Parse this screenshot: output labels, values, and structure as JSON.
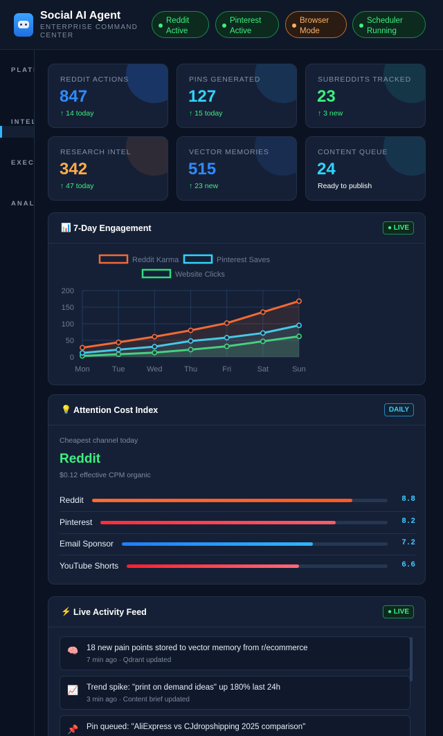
{
  "header": {
    "title": "Social AI Agent",
    "subtitle": "ENTERPRISE COMMAND CENTER",
    "pills": [
      {
        "line1": "Reddit",
        "line2": "Active",
        "status": "green"
      },
      {
        "line1": "Pinterest",
        "line2": "Active",
        "status": "green"
      },
      {
        "line1": "Browser",
        "line2": "Mode",
        "status": "orange"
      },
      {
        "line1": "Scheduler",
        "line2": "Running",
        "status": "green"
      }
    ]
  },
  "sidebar": {
    "sections": [
      "PLATFORMS",
      "INTELLIGENCE",
      "EXECUTION",
      "ANALYTICS"
    ]
  },
  "stats": [
    {
      "label": "REDDIT ACTIONS",
      "value": "847",
      "sub": "↑ 14 today",
      "color": "#2f8bff",
      "sub_color": "#3df07e",
      "glow": "#1e4fa0"
    },
    {
      "label": "PINS GENERATED",
      "value": "127",
      "sub": "↑ 15 today",
      "color": "#2fd5ff",
      "sub_color": "#3df07e",
      "glow": "#1b4a78"
    },
    {
      "label": "SUBREDDITS TRACKED",
      "value": "23",
      "sub": "↑ 3 new",
      "color": "#3df07e",
      "sub_color": "#3df07e",
      "glow": "#15515a"
    },
    {
      "label": "RESEARCH INTEL",
      "value": "342",
      "sub": "↑ 47 today",
      "color": "#ffad4a",
      "sub_color": "#3df07e",
      "glow": "#4d3a3a"
    },
    {
      "label": "VECTOR MEMORIES",
      "value": "515",
      "sub": "↑ 23 new",
      "color": "#2f8bff",
      "sub_color": "#3df07e",
      "glow": "#1e3f70"
    },
    {
      "label": "CONTENT QUEUE",
      "value": "24",
      "sub": "Ready to publish",
      "color": "#2fd5ff",
      "sub_color": "#ffffff",
      "glow": "#18506a"
    }
  ],
  "engagement": {
    "icon": "📊",
    "title": "7-Day Engagement",
    "badge": "● LIVE"
  },
  "chart_data": {
    "type": "line",
    "categories": [
      "Mon",
      "Tue",
      "Wed",
      "Thu",
      "Fri",
      "Sat",
      "Sun"
    ],
    "ylim": [
      0,
      200
    ],
    "yticks": [
      0,
      50,
      100,
      150,
      200
    ],
    "legend_position": "top",
    "grid": true,
    "series": [
      {
        "name": "Reddit Karma",
        "values": [
          28,
          44,
          61,
          80,
          102,
          135,
          168
        ],
        "color": "#f26a35"
      },
      {
        "name": "Pinterest Saves",
        "values": [
          12,
          22,
          31,
          48,
          58,
          72,
          95
        ],
        "color": "#2fd5ff"
      },
      {
        "name": "Website Clicks",
        "values": [
          3,
          8,
          13,
          22,
          32,
          47,
          62
        ],
        "color": "#2ee07a"
      }
    ]
  },
  "attention": {
    "icon": "💡",
    "title": "Attention Cost Index",
    "badge": "DAILY",
    "cheapest_label": "Cheapest channel today",
    "cheapest_channel": "Reddit",
    "cheapest_detail": "$0.12 effective CPM organic",
    "channels": [
      {
        "name": "Reddit",
        "score": "8.8",
        "fraction": 0.88,
        "color": "#ff6a2e",
        "color2": "#ff5a1f"
      },
      {
        "name": "Pinterest",
        "score": "8.2",
        "fraction": 0.82,
        "color": "#ff2d3a",
        "color2": "#ff5b6a"
      },
      {
        "name": "Email Sponsor",
        "score": "7.2",
        "fraction": 0.72,
        "color": "#1f7dff",
        "color2": "#2fb6ff"
      },
      {
        "name": "YouTube Shorts",
        "score": "6.6",
        "fraction": 0.66,
        "color": "#ff1f2e",
        "color2": "#ff6a78"
      }
    ]
  },
  "feed": {
    "icon": "⚡",
    "title": "Live Activity Feed",
    "badge": "● LIVE",
    "items": [
      {
        "icon": "🧠",
        "text": "18 new pain points stored to vector memory from r/ecommerce",
        "meta": "7 min ago · Qdrant updated"
      },
      {
        "icon": "📈",
        "text": "Trend spike: \"print on demand ideas\" up 180% last 24h",
        "meta": "3 min ago · Content brief updated"
      },
      {
        "icon": "📌",
        "text": "Pin queued: \"AliExpress vs CJdropshipping 2025 comparison\"",
        "meta": ""
      }
    ]
  }
}
